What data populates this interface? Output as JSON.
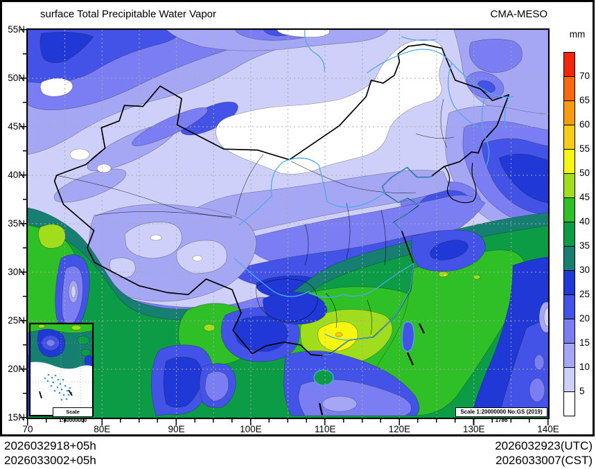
{
  "header": {
    "title": "surface Total Precipitable Water Vapor",
    "model": "CMA-MESO"
  },
  "legend": {
    "unit": "mm",
    "cells": [
      {
        "color": "#F3260C",
        "label": "70"
      },
      {
        "color": "#F66A0D",
        "label": "65"
      },
      {
        "color": "#F89B12",
        "label": "60"
      },
      {
        "color": "#F8CC16",
        "label": "55"
      },
      {
        "color": "#F6F60E",
        "label": "50"
      },
      {
        "color": "#A0DE1D",
        "label": "45"
      },
      {
        "color": "#2FBF27",
        "label": "40"
      },
      {
        "color": "#0C9C45",
        "label": "35"
      },
      {
        "color": "#167F72",
        "label": "30"
      },
      {
        "color": "#2038D6",
        "label": "25"
      },
      {
        "color": "#4353E8",
        "label": "20"
      },
      {
        "color": "#7B7DF2",
        "label": "15"
      },
      {
        "color": "#A5A7F5",
        "label": "10"
      },
      {
        "color": "#CFD0FA",
        "label": "5"
      },
      {
        "color": "#FFFFFF",
        "label": ""
      }
    ]
  },
  "axes": {
    "x": [
      "70",
      "80E",
      "90E",
      "100E",
      "110E",
      "120E",
      "130E",
      "140E"
    ],
    "y": [
      "55N",
      "50N",
      "45N",
      "40N",
      "35N",
      "30N",
      "25N",
      "20N",
      "15N"
    ]
  },
  "scales": {
    "main": "Scale 1:20000000 No:GS (2019) 1786",
    "inset": "Scale 1:40000000"
  },
  "footer": {
    "left": [
      "2026032918+05h",
      "2026033002+05h"
    ],
    "right": [
      "2026032923(UTC)",
      "2026033007(CST)"
    ]
  },
  "map_colors": {
    "palette": {
      "c70": "#F3260C",
      "c65": "#F66A0D",
      "c60": "#F89B12",
      "c55": "#F8CC16",
      "c50": "#F6F60E",
      "c45": "#A0DE1D",
      "c40": "#2FBF27",
      "c35": "#0C9C45",
      "c30": "#167F72",
      "c25": "#2038D6",
      "c20": "#4353E8",
      "c15": "#7B7DF2",
      "c10": "#A5A7F5",
      "c5": "#CFD0FA",
      "cw": "#FFFFFF"
    },
    "boundary": "#000000",
    "river": "#4FA8F0",
    "grid": "#A9A9A9",
    "dots": "#3D8DE8"
  }
}
